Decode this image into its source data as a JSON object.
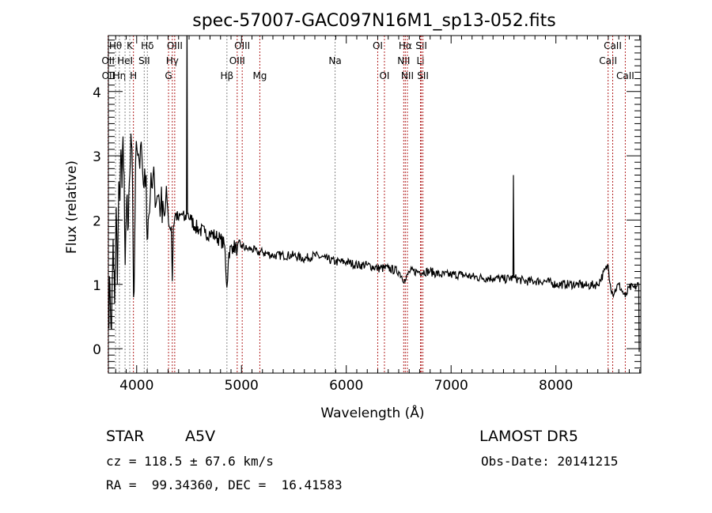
{
  "chart_data": {
    "type": "line",
    "title": "spec-57007-GAC097N16M1_sp13-052.fits",
    "xlabel": "Wavelength (Å)",
    "ylabel": "Flux (relative)",
    "xlim": [
      3730,
      8810
    ],
    "ylim": [
      -0.38,
      4.87
    ],
    "xticks": [
      4000,
      5000,
      6000,
      7000,
      8000
    ],
    "yticks": [
      0,
      1,
      2,
      3,
      4
    ],
    "grid": false,
    "series": [
      {
        "name": "spectrum",
        "color": "#000000",
        "points": [
          [
            3730,
            0.5
          ],
          [
            3745,
            1.0
          ],
          [
            3760,
            0.3
          ],
          [
            3775,
            1.7
          ],
          [
            3790,
            0.7
          ],
          [
            3805,
            2.2
          ],
          [
            3815,
            1.0
          ],
          [
            3830,
            2.6
          ],
          [
            3840,
            2.3
          ],
          [
            3850,
            3.1
          ],
          [
            3860,
            2.5
          ],
          [
            3870,
            3.3
          ],
          [
            3880,
            2.7
          ],
          [
            3890,
            1.3
          ],
          [
            3900,
            2.0
          ],
          [
            3910,
            2.4
          ],
          [
            3920,
            1.9
          ],
          [
            3930,
            2.6
          ],
          [
            3940,
            2.9
          ],
          [
            3950,
            3.2
          ],
          [
            3960,
            2.6
          ],
          [
            3970,
            0.8
          ],
          [
            3980,
            1.5
          ],
          [
            3990,
            2.9
          ],
          [
            4010,
            3.0
          ],
          [
            4030,
            2.8
          ],
          [
            4050,
            3.0
          ],
          [
            4070,
            2.5
          ],
          [
            4090,
            2.7
          ],
          [
            4100,
            1.7
          ],
          [
            4110,
            2.0
          ],
          [
            4130,
            2.4
          ],
          [
            4150,
            2.5
          ],
          [
            4170,
            2.6
          ],
          [
            4190,
            2.3
          ],
          [
            4210,
            2.4
          ],
          [
            4230,
            2.2
          ],
          [
            4250,
            2.3
          ],
          [
            4270,
            2.1
          ],
          [
            4290,
            2.3
          ],
          [
            4310,
            1.9
          ],
          [
            4330,
            1.9
          ],
          [
            4340,
            1.05
          ],
          [
            4350,
            1.9
          ],
          [
            4370,
            2.1
          ],
          [
            4400,
            2.0
          ],
          [
            4430,
            2.1
          ],
          [
            4460,
            2.0
          ],
          [
            4475,
            2.1
          ],
          [
            4480,
            5.2
          ],
          [
            4485,
            2.1
          ],
          [
            4520,
            2.0
          ],
          [
            4560,
            1.9
          ],
          [
            4600,
            1.85
          ],
          [
            4650,
            1.8
          ],
          [
            4700,
            1.8
          ],
          [
            4750,
            1.75
          ],
          [
            4800,
            1.7
          ],
          [
            4840,
            1.6
          ],
          [
            4861,
            0.95
          ],
          [
            4880,
            1.5
          ],
          [
            4920,
            1.6
          ],
          [
            4960,
            1.55
          ],
          [
            5000,
            1.6
          ],
          [
            5050,
            1.55
          ],
          [
            5100,
            1.55
          ],
          [
            5150,
            1.5
          ],
          [
            5200,
            1.5
          ],
          [
            5300,
            1.45
          ],
          [
            5400,
            1.45
          ],
          [
            5500,
            1.45
          ],
          [
            5600,
            1.4
          ],
          [
            5700,
            1.45
          ],
          [
            5800,
            1.4
          ],
          [
            5900,
            1.35
          ],
          [
            6000,
            1.35
          ],
          [
            6100,
            1.3
          ],
          [
            6200,
            1.3
          ],
          [
            6300,
            1.25
          ],
          [
            6400,
            1.25
          ],
          [
            6500,
            1.2
          ],
          [
            6563,
            1.05
          ],
          [
            6600,
            1.2
          ],
          [
            6700,
            1.2
          ],
          [
            6800,
            1.2
          ],
          [
            6900,
            1.15
          ],
          [
            7000,
            1.15
          ],
          [
            7100,
            1.15
          ],
          [
            7200,
            1.12
          ],
          [
            7300,
            1.1
          ],
          [
            7400,
            1.1
          ],
          [
            7500,
            1.08
          ],
          [
            7590,
            1.1
          ],
          [
            7595,
            2.7
          ],
          [
            7600,
            1.1
          ],
          [
            7700,
            1.05
          ],
          [
            7800,
            1.05
          ],
          [
            7900,
            1.05
          ],
          [
            8000,
            1.0
          ],
          [
            8100,
            1.0
          ],
          [
            8200,
            1.0
          ],
          [
            8300,
            0.98
          ],
          [
            8400,
            1.0
          ],
          [
            8498,
            1.3
          ],
          [
            8520,
            1.0
          ],
          [
            8542,
            0.85
          ],
          [
            8600,
            1.0
          ],
          [
            8662,
            0.8
          ],
          [
            8700,
            0.95
          ],
          [
            8750,
            0.95
          ],
          [
            8790,
            1.0
          ],
          [
            8795,
            -0.05
          ]
        ]
      }
    ],
    "line_markers": [
      {
        "label": "OII",
        "wl": 3727,
        "row": 2,
        "color": "#b22222"
      },
      {
        "label": "OII",
        "wl": 3729,
        "row": 3,
        "color": "#b22222"
      },
      {
        "label": "Hθ",
        "wl": 3798,
        "row": 1,
        "color": "#888888"
      },
      {
        "label": "Hη",
        "wl": 3835,
        "row": 3,
        "color": "#888888"
      },
      {
        "label": "HeI",
        "wl": 3889,
        "row": 2,
        "color": "#888888"
      },
      {
        "label": "K",
        "wl": 3934,
        "row": 1,
        "color": "#888888"
      },
      {
        "label": "H",
        "wl": 3969,
        "row": 3,
        "color": "#b22222"
      },
      {
        "label": "SII",
        "wl": 4072,
        "row": 2,
        "color": "#888888"
      },
      {
        "label": "Hδ",
        "wl": 4102,
        "row": 1,
        "color": "#888888"
      },
      {
        "label": "G",
        "wl": 4304,
        "row": 3,
        "color": "#b22222"
      },
      {
        "label": "Hγ",
        "wl": 4340,
        "row": 2,
        "color": "#b22222"
      },
      {
        "label": "OIII",
        "wl": 4363,
        "row": 1,
        "color": "#b22222"
      },
      {
        "label": "Hβ",
        "wl": 4861,
        "row": 3,
        "color": "#888888"
      },
      {
        "label": "OIII",
        "wl": 4959,
        "row": 2,
        "color": "#b22222"
      },
      {
        "label": "OIII",
        "wl": 5007,
        "row": 1,
        "color": "#b22222"
      },
      {
        "label": "Mg",
        "wl": 5175,
        "row": 3,
        "color": "#b22222"
      },
      {
        "label": "Na",
        "wl": 5893,
        "row": 2,
        "color": "#888888"
      },
      {
        "label": "OI",
        "wl": 6300,
        "row": 1,
        "color": "#b22222"
      },
      {
        "label": "OI",
        "wl": 6364,
        "row": 3,
        "color": "#b22222"
      },
      {
        "label": "NII",
        "wl": 6548,
        "row": 2,
        "color": "#b22222"
      },
      {
        "label": "Hα",
        "wl": 6563,
        "row": 1,
        "color": "#b22222"
      },
      {
        "label": "NII",
        "wl": 6583,
        "row": 3,
        "color": "#b22222"
      },
      {
        "label": "Li",
        "wl": 6708,
        "row": 2,
        "color": "#b22222"
      },
      {
        "label": "SII",
        "wl": 6716,
        "row": 1,
        "color": "#b22222"
      },
      {
        "label": "SII",
        "wl": 6731,
        "row": 3,
        "color": "#b22222"
      },
      {
        "label": "CaII",
        "wl": 8498,
        "row": 2,
        "color": "#b22222"
      },
      {
        "label": "CaII",
        "wl": 8542,
        "row": 1,
        "color": "#b22222"
      },
      {
        "label": "CaII",
        "wl": 8662,
        "row": 3,
        "color": "#b22222"
      }
    ]
  },
  "info": {
    "class": "STAR",
    "subclass": "A5V",
    "survey": "LAMOST DR5",
    "cz": "cz = 118.5 ± 67.6 km/s",
    "obs_date": "Obs-Date: 20141215",
    "coords": "RA =  99.34360, DEC =  16.41583"
  }
}
